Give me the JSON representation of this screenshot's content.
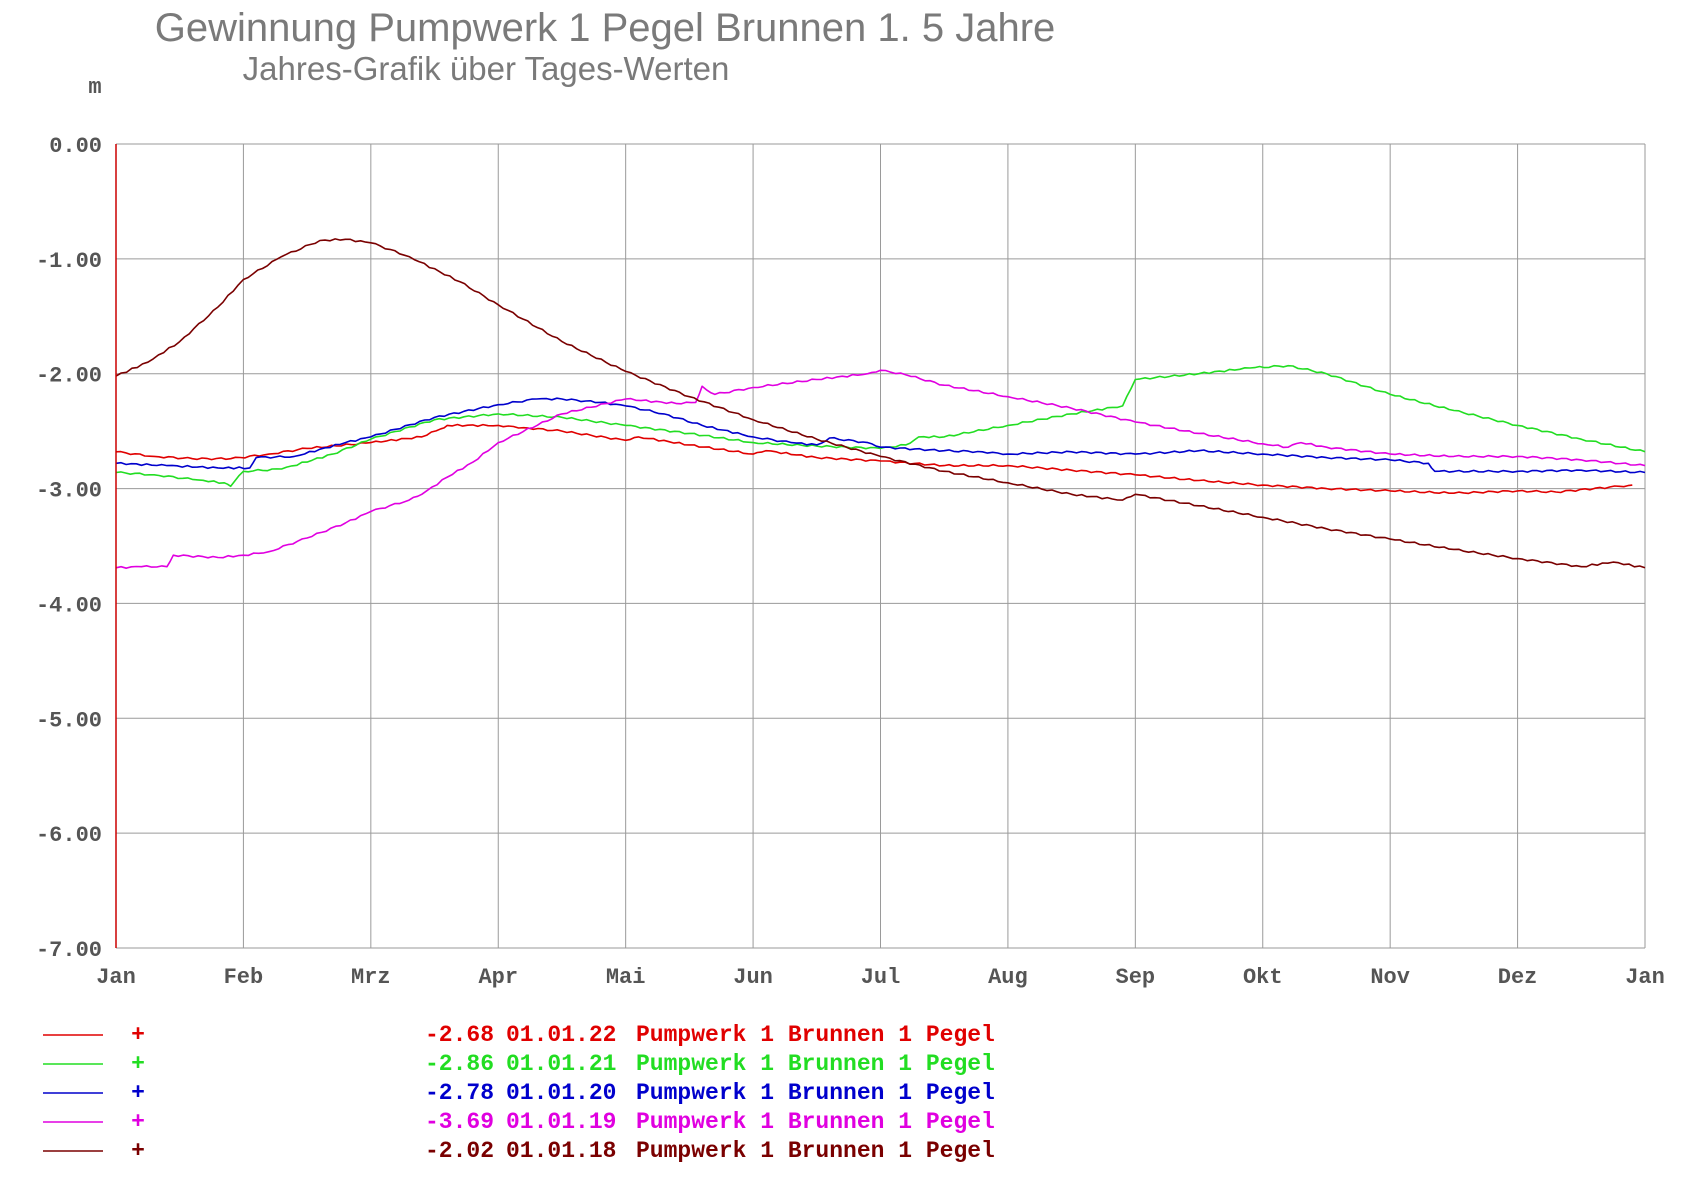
{
  "chart_data": {
    "type": "line",
    "title": "Gewinnung Pumpwerk 1 Pegel Brunnen 1. 5 Jahre",
    "subtitle": "Jahres-Grafik über Tages-Werten",
    "ylabel": "m",
    "ylim": [
      -7,
      0
    ],
    "yticks": [
      "0.00",
      "-1.00",
      "-2.00",
      "-3.00",
      "-4.00",
      "-5.00",
      "-6.00",
      "-7.00"
    ],
    "x_unit": "month",
    "xlim": [
      0,
      12
    ],
    "categories": [
      "Jan",
      "Feb",
      "Mrz",
      "Apr",
      "Mai",
      "Jun",
      "Jul",
      "Aug",
      "Sep",
      "Okt",
      "Nov",
      "Dez",
      "Jan"
    ],
    "grid": true,
    "legend_position": "bottom-left",
    "series": [
      {
        "name": "Pumpwerk 1 Brunnen 1 Pegel",
        "marker": "+",
        "value": "-2.68",
        "date": "01.01.22",
        "color": "#e00000",
        "x": [
          0,
          0.3,
          0.6,
          0.9,
          1.2,
          1.5,
          2.0,
          2.4,
          2.55,
          2.6,
          3.0,
          3.2,
          3.5,
          4.0,
          4.1,
          4.5,
          5.0,
          5.1,
          5.5,
          6.0,
          6.5,
          7.0,
          7.5,
          8.0,
          8.5,
          9.0,
          9.5,
          10.0,
          10.5,
          11.0,
          11.3,
          11.8,
          11.9
        ],
        "y": [
          -2.68,
          -2.72,
          -2.74,
          -2.74,
          -2.7,
          -2.65,
          -2.6,
          -2.55,
          -2.48,
          -2.45,
          -2.45,
          -2.47,
          -2.5,
          -2.58,
          -2.55,
          -2.62,
          -2.7,
          -2.67,
          -2.73,
          -2.76,
          -2.8,
          -2.8,
          -2.84,
          -2.88,
          -2.93,
          -2.97,
          -3.0,
          -3.02,
          -3.04,
          -3.02,
          -3.03,
          -2.98,
          -2.97
        ]
      },
      {
        "name": "Pumpwerk 1 Brunnen 1 Pegel",
        "marker": "+",
        "value": "-2.86",
        "date": "01.01.21",
        "color": "#22dd22",
        "x": [
          0,
          0.3,
          0.6,
          0.85,
          0.9,
          1.0,
          1.3,
          1.7,
          2.0,
          2.5,
          3.0,
          3.5,
          4.0,
          4.5,
          5.0,
          5.5,
          6.0,
          6.2,
          6.3,
          6.5,
          7.0,
          7.5,
          7.9,
          8.0,
          8.5,
          8.9,
          9.2,
          9.5,
          10.0,
          10.5,
          11.0,
          11.5,
          12.0
        ],
        "y": [
          -2.86,
          -2.88,
          -2.92,
          -2.95,
          -2.98,
          -2.85,
          -2.83,
          -2.7,
          -2.57,
          -2.4,
          -2.35,
          -2.38,
          -2.45,
          -2.52,
          -2.6,
          -2.63,
          -2.65,
          -2.62,
          -2.55,
          -2.55,
          -2.45,
          -2.35,
          -2.28,
          -2.05,
          -2.0,
          -1.95,
          -1.93,
          -2.0,
          -2.18,
          -2.32,
          -2.45,
          -2.57,
          -2.68
        ]
      },
      {
        "name": "Pumpwerk 1 Brunnen 1 Pegel",
        "marker": "+",
        "value": "-2.78",
        "date": "01.01.20",
        "color": "#0000cc",
        "x": [
          0,
          0.4,
          0.8,
          1.05,
          1.1,
          1.4,
          1.8,
          2.0,
          2.5,
          3.0,
          3.3,
          3.5,
          3.8,
          4.0,
          4.3,
          4.6,
          5.0,
          5.3,
          5.5,
          5.6,
          5.9,
          6.0,
          6.5,
          6.8,
          7.0,
          7.5,
          8.0,
          8.5,
          9.0,
          9.5,
          10.0,
          10.3,
          10.35,
          11.0,
          11.5,
          12.0
        ],
        "y": [
          -2.78,
          -2.8,
          -2.82,
          -2.82,
          -2.73,
          -2.72,
          -2.6,
          -2.55,
          -2.38,
          -2.27,
          -2.22,
          -2.22,
          -2.25,
          -2.28,
          -2.35,
          -2.45,
          -2.55,
          -2.6,
          -2.62,
          -2.56,
          -2.6,
          -2.64,
          -2.67,
          -2.68,
          -2.7,
          -2.68,
          -2.7,
          -2.67,
          -2.7,
          -2.73,
          -2.75,
          -2.78,
          -2.85,
          -2.85,
          -2.84,
          -2.86
        ]
      },
      {
        "name": "Pumpwerk 1 Brunnen 1 Pegel",
        "marker": "+",
        "value": "-3.69",
        "date": "01.01.19",
        "color": "#e000e0",
        "x": [
          0,
          0.2,
          0.4,
          0.45,
          0.8,
          1.0,
          1.2,
          1.5,
          1.8,
          2.0,
          2.3,
          2.4,
          2.6,
          2.8,
          3.0,
          3.5,
          4.0,
          4.4,
          4.55,
          4.6,
          4.7,
          5.0,
          5.5,
          5.9,
          6.0,
          6.2,
          6.5,
          7.0,
          7.5,
          8.0,
          8.5,
          9.0,
          9.2,
          9.3,
          9.5,
          10.0,
          10.5,
          11.0,
          11.5,
          12.0
        ],
        "y": [
          -3.69,
          -3.68,
          -3.68,
          -3.58,
          -3.6,
          -3.58,
          -3.55,
          -3.43,
          -3.3,
          -3.2,
          -3.1,
          -3.05,
          -2.9,
          -2.77,
          -2.6,
          -2.35,
          -2.22,
          -2.26,
          -2.25,
          -2.11,
          -2.18,
          -2.12,
          -2.05,
          -2.0,
          -1.97,
          -2.01,
          -2.1,
          -2.2,
          -2.3,
          -2.42,
          -2.52,
          -2.61,
          -2.64,
          -2.6,
          -2.64,
          -2.7,
          -2.72,
          -2.72,
          -2.75,
          -2.8
        ]
      },
      {
        "name": "Pumpwerk 1 Brunnen 1 Pegel",
        "marker": "+",
        "value": "-2.02",
        "date": "01.01.18",
        "color": "#7a0000",
        "x": [
          0,
          0.25,
          0.5,
          0.8,
          1.0,
          1.3,
          1.6,
          1.8,
          2.0,
          2.3,
          2.7,
          3.0,
          3.5,
          4.0,
          4.5,
          5.0,
          5.5,
          6.0,
          6.5,
          7.0,
          7.5,
          7.9,
          8.0,
          8.5,
          9.0,
          9.5,
          10.0,
          10.5,
          11.0,
          11.5,
          11.75,
          12.0
        ],
        "y": [
          -2.02,
          -1.9,
          -1.72,
          -1.42,
          -1.18,
          -0.98,
          -0.84,
          -0.83,
          -0.86,
          -0.98,
          -1.2,
          -1.4,
          -1.72,
          -1.98,
          -2.2,
          -2.4,
          -2.57,
          -2.72,
          -2.85,
          -2.95,
          -3.05,
          -3.1,
          -3.05,
          -3.15,
          -3.25,
          -3.35,
          -3.44,
          -3.53,
          -3.61,
          -3.68,
          -3.64,
          -3.69
        ]
      }
    ]
  }
}
